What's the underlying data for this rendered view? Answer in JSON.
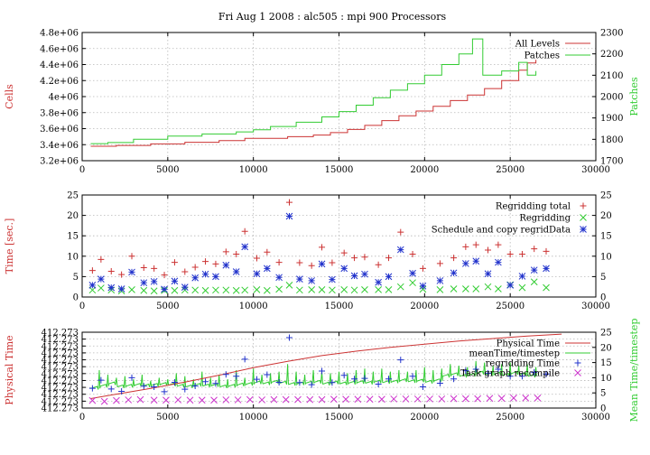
{
  "title": "Fri Aug 1 2008 : alc505 : mpi 900 Processors",
  "colors": {
    "red": "#cc3333",
    "green": "#33cc33",
    "blue": "#2233cc",
    "magenta": "#cc33cc"
  },
  "chart_data": [
    {
      "type": "line",
      "ylabel": "Cells",
      "y2label": "Patches",
      "xlim": [
        0,
        30000
      ],
      "ylim": [
        3200000,
        4800000
      ],
      "y2lim": [
        1700,
        2300
      ],
      "x_ticks": [
        "0",
        "5000",
        "10000",
        "15000",
        "20000",
        "25000",
        "30000"
      ],
      "y_ticks": [
        "3.2e+06",
        "3.4e+06",
        "3.6e+06",
        "3.8e+06",
        "4e+06",
        "4.2e+06",
        "4.4e+06",
        "4.6e+06",
        "4.8e+06"
      ],
      "y2_ticks": [
        "1700",
        "1800",
        "1900",
        "2000",
        "2100",
        "2200",
        "2300"
      ],
      "grid": true,
      "legend_position": "top-right",
      "series": [
        {
          "name": "All Levels",
          "axis": "left",
          "color": "red",
          "x": [
            500,
            2000,
            4000,
            6000,
            8000,
            9500,
            10500,
            12000,
            13500,
            14500,
            15500,
            16500,
            17500,
            18500,
            19500,
            20500,
            21500,
            22500,
            23500,
            24500,
            25500,
            26000,
            26500
          ],
          "y": [
            3380000,
            3390000,
            3410000,
            3430000,
            3450000,
            3480000,
            3480000,
            3500000,
            3520000,
            3550000,
            3590000,
            3640000,
            3700000,
            3760000,
            3820000,
            3880000,
            3950000,
            4020000,
            4100000,
            4200000,
            4330000,
            4420000,
            4460000
          ]
        },
        {
          "name": "Patches",
          "axis": "right",
          "color": "green",
          "x": [
            500,
            1500,
            3000,
            5000,
            7000,
            9000,
            10000,
            11000,
            12500,
            14000,
            15000,
            16000,
            17000,
            18000,
            19000,
            20000,
            21000,
            22000,
            22800,
            23400,
            24500,
            25500,
            26000,
            26500
          ],
          "y": [
            1780,
            1785,
            1800,
            1815,
            1825,
            1835,
            1845,
            1860,
            1880,
            1905,
            1930,
            1960,
            1995,
            2030,
            2060,
            2100,
            2150,
            2200,
            2270,
            2100,
            2120,
            2160,
            2100,
            2120
          ]
        }
      ]
    },
    {
      "type": "scatter",
      "ylabel": "Time [sec.]",
      "xlim": [
        0,
        30000
      ],
      "ylim": [
        0,
        25
      ],
      "y2lim": [
        0,
        25
      ],
      "x_ticks": [
        "0",
        "5000",
        "10000",
        "15000",
        "20000",
        "25000",
        "30000"
      ],
      "y_ticks": [
        "0",
        "5",
        "10",
        "15",
        "20",
        "25"
      ],
      "y2_ticks": [
        "0",
        "5",
        "10",
        "15",
        "20",
        "25"
      ],
      "grid": true,
      "legend_position": "top-right",
      "x": [
        600,
        1100,
        1700,
        2300,
        2900,
        3600,
        4200,
        4800,
        5400,
        6000,
        6600,
        7200,
        7800,
        8400,
        9000,
        9500,
        10200,
        10800,
        11500,
        12100,
        12700,
        13400,
        14000,
        14600,
        15300,
        15900,
        16500,
        17300,
        17900,
        18600,
        19300,
        19900,
        20900,
        21700,
        22400,
        23000,
        23700,
        24300,
        25000,
        25700,
        26400,
        27100
      ],
      "series": [
        {
          "name": "Regridding total",
          "color": "red",
          "marker": "+",
          "values": [
            6.5,
            9.2,
            6.3,
            5.5,
            10,
            7.2,
            7,
            5.4,
            8.5,
            6.2,
            7.3,
            8.7,
            8.1,
            11.1,
            10.5,
            16.1,
            9.5,
            11,
            8.5,
            23.2,
            8.4,
            7.7,
            12.2,
            8.4,
            10.8,
            9.6,
            9.8,
            7.9,
            9.6,
            15.9,
            10.5,
            7,
            8.2,
            9.6,
            12.3,
            12.8,
            11.5,
            12.8,
            10.5,
            10.5,
            11.8,
            11.2
          ]
        },
        {
          "name": "Regridding",
          "color": "green",
          "marker": "x",
          "values": [
            1.7,
            2.2,
            1.7,
            1.5,
            1.8,
            1.6,
            1.5,
            1.6,
            1.6,
            1.7,
            1.7,
            1.6,
            1.7,
            1.7,
            1.6,
            1.7,
            1.8,
            1.6,
            1.9,
            2.9,
            1.7,
            1.8,
            1.8,
            1.7,
            1.8,
            1.7,
            1.8,
            1.8,
            1.8,
            2.5,
            3.5,
            1.9,
            1.8,
            2.0,
            2.0,
            2.0,
            2.5,
            2.0,
            3.0,
            2.3,
            3.7,
            2.3
          ]
        },
        {
          "name": "Schedule and copy regridData",
          "color": "blue",
          "marker": "*",
          "values": [
            2.9,
            4.4,
            2.3,
            2.0,
            6.1,
            3.5,
            3.8,
            1.9,
            3.9,
            2.4,
            4.7,
            5.6,
            5.0,
            7.8,
            6.2,
            12.3,
            5.7,
            7.0,
            4.8,
            19.8,
            4.4,
            4.0,
            8.1,
            4.3,
            7.0,
            5.2,
            5.6,
            3.6,
            5.0,
            11.6,
            5.8,
            2.7,
            4.0,
            5.9,
            8.2,
            8.8,
            5.7,
            8.5,
            2.9,
            5.1,
            6.6,
            7.0
          ]
        }
      ]
    },
    {
      "type": "line",
      "ylabel": "Physical Time",
      "y2label": "Mean Time/timestep",
      "xlim": [
        0,
        30000
      ],
      "ylim": [
        0,
        12
      ],
      "y2lim": [
        0,
        25
      ],
      "x_ticks": [
        "0",
        "5000",
        "10000",
        "15000",
        "20000",
        "25000",
        "30000"
      ],
      "y_ticks": [
        "412.273",
        "412.273",
        "412.273",
        "412.273",
        "412.273",
        "412.273",
        "412.273",
        "412.273",
        "412.273",
        "412.273",
        "412.273",
        "412.273"
      ],
      "y2_ticks": [
        "0",
        "5",
        "10",
        "15",
        "20",
        "25"
      ],
      "grid": true,
      "legend_position": "top-right",
      "physical_time": {
        "name": "Physical Time",
        "axis": "left",
        "color": "red",
        "x": [
          500,
          2000,
          4000,
          6000,
          8000,
          10000,
          12000,
          14000,
          16000,
          18000,
          20000,
          22000,
          24000,
          26000,
          28000
        ],
        "y": [
          1.5,
          2.2,
          3.1,
          4.1,
          5.2,
          6.4,
          7.4,
          8.3,
          9.0,
          9.6,
          10.1,
          10.6,
          11.0,
          11.4,
          11.7
        ]
      },
      "mean_time": {
        "name": "meanTime/timestep",
        "axis": "right",
        "color": "green",
        "breaks": [
          1000,
          1500,
          2000,
          2500,
          3000,
          3500,
          4000,
          4500,
          5000,
          5500,
          6000,
          6500,
          7000,
          7500,
          8000,
          8500,
          9000,
          9500,
          10000,
          10500,
          11000,
          11500,
          12000,
          12500,
          13000,
          13500,
          14000,
          14500,
          15000,
          15500,
          16000,
          16500,
          17000,
          17500,
          18000,
          18500,
          19000,
          19500,
          20000,
          20500,
          21000,
          21500,
          22000,
          22500,
          23000,
          23500,
          24000,
          24500,
          25000,
          25500,
          26000,
          26500
        ],
        "baseline": [
          6.5,
          7.2,
          8.0,
          7.0,
          7.2,
          7.5,
          7.3,
          7.5,
          7.8,
          7.6,
          7.2,
          7.0,
          7.5,
          7.3,
          7.4,
          7.0,
          7.2,
          7.6,
          7.8,
          8.3,
          8.0,
          8.5,
          8.2,
          7.8,
          8.0,
          8.2,
          8.5,
          7.9,
          8.3,
          8.0,
          8.2,
          8.4,
          8.2,
          8.6,
          8.4,
          8.6,
          9.0,
          8.7,
          8.9,
          8.5,
          9.0,
          10.5,
          11.0,
          10.5,
          10.8,
          11.5,
          11.0,
          11.2,
          10.8,
          11.4,
          11.0,
          10.5
        ],
        "spikes": [
          12.5,
          11.0,
          10.0,
          10.5,
          9.5,
          11.0,
          9.0,
          10.0,
          9.5,
          11.5,
          10.5,
          9.5,
          12.0,
          10.0,
          11.0,
          9.5,
          12.5,
          10.0,
          13.0,
          11.0,
          11.5,
          12.0,
          14.5,
          12.0,
          11.0,
          12.5,
          12.0,
          11.5,
          12.0,
          11.5,
          12.5,
          13.0,
          12.0,
          13.0,
          12.0,
          12.5,
          12.0,
          12.5,
          13.5,
          12.5,
          13.0,
          14.5,
          14.0,
          13.5,
          15.5,
          15.0,
          14.0,
          14.5,
          15.0,
          14.0,
          14.5,
          13.5
        ]
      },
      "regridding_time": {
        "name": "regridding Time",
        "axis": "right",
        "color": "blue",
        "marker": "+",
        "x": [
          600,
          1100,
          1700,
          2300,
          2900,
          3600,
          4200,
          4800,
          5400,
          6000,
          6600,
          7200,
          7800,
          8400,
          9000,
          9500,
          10200,
          10800,
          11500,
          12100,
          12700,
          13400,
          14000,
          14600,
          15300,
          15900,
          16500,
          17300,
          17900,
          18600,
          19300,
          19900,
          20900,
          21700,
          22400,
          23000,
          23700,
          24300,
          25000,
          25700,
          26400,
          27100
        ],
        "y": [
          6.5,
          9.2,
          6.3,
          5.5,
          10,
          7.2,
          7,
          5.4,
          8.5,
          6.2,
          7.3,
          8.7,
          8.1,
          11.1,
          10.5,
          16.1,
          9.5,
          11,
          8.5,
          23.2,
          8.4,
          7.7,
          12.2,
          8.4,
          10.8,
          9.6,
          9.8,
          7.9,
          9.6,
          15.9,
          10.5,
          7,
          8.2,
          9.6,
          12.3,
          12.8,
          11.5,
          12.8,
          10.5,
          10.5,
          11.8,
          11.2
        ]
      },
      "task_graph": {
        "name": "Task graph recompile",
        "axis": "right",
        "color": "magenta",
        "marker": "x",
        "x": [
          600,
          1300,
          2000,
          2700,
          3400,
          4200,
          4900,
          5600,
          6300,
          7000,
          7700,
          8400,
          9100,
          9800,
          10500,
          11200,
          11900,
          12600,
          13300,
          14000,
          14700,
          15400,
          16100,
          16800,
          17500,
          18200,
          18900,
          19600,
          20300,
          21000,
          21700,
          22400,
          23100,
          23800,
          24500,
          25200,
          25900,
          26600
        ],
        "y": [
          2.5,
          2.2,
          2.5,
          2.7,
          2.8,
          2.6,
          2.6,
          2.7,
          2.6,
          2.6,
          2.6,
          2.7,
          2.7,
          2.8,
          2.7,
          2.8,
          2.8,
          2.8,
          2.8,
          2.8,
          2.9,
          2.9,
          2.9,
          2.9,
          2.9,
          3.0,
          3.0,
          3.0,
          3.0,
          3.0,
          3.1,
          3.1,
          3.1,
          3.2,
          3.2,
          3.3,
          3.3,
          3.3
        ]
      }
    }
  ]
}
